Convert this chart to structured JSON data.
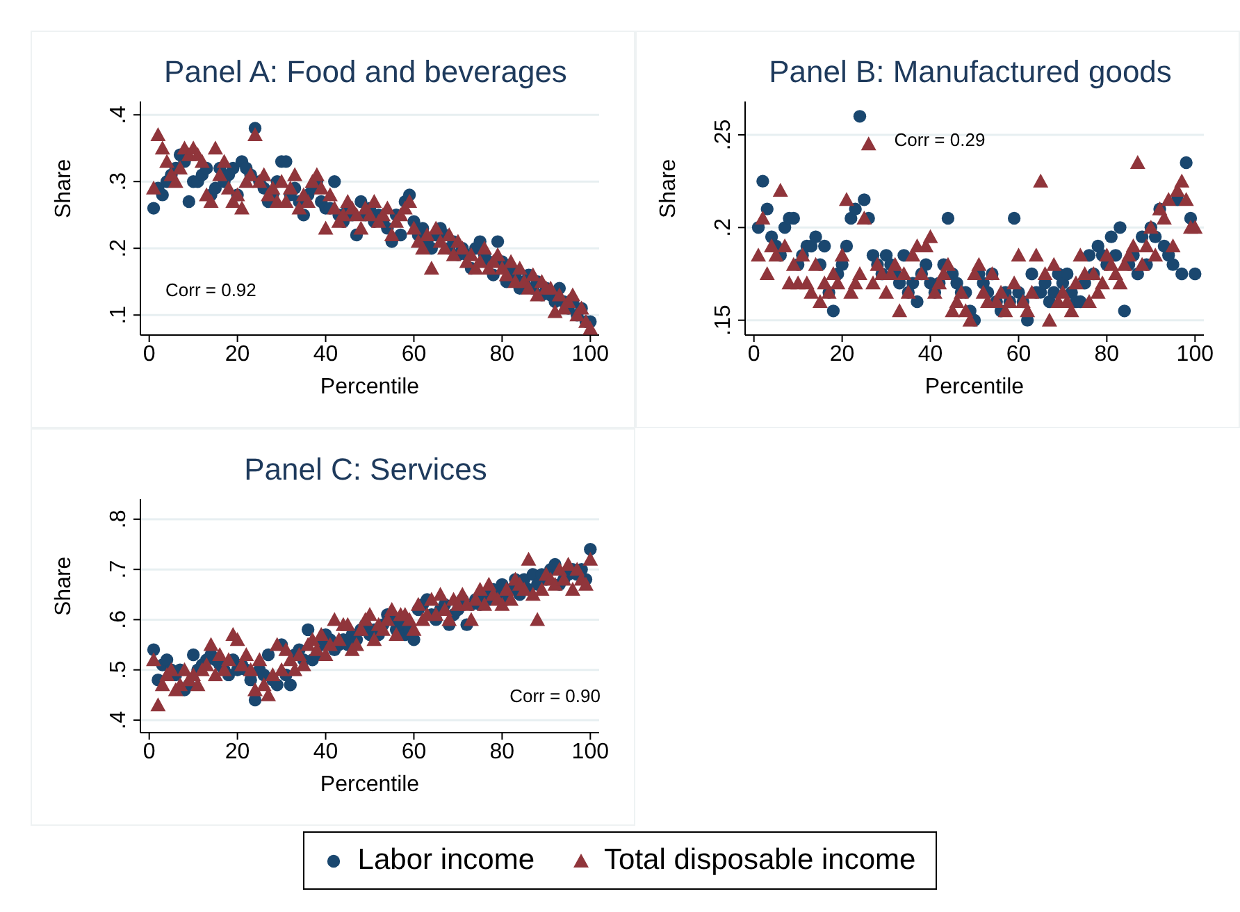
{
  "chart_data": [
    {
      "type": "scatter",
      "title": "Panel A: Food and beverages",
      "xlabel": "Percentile",
      "ylabel": "Share",
      "annotations": [
        "Corr = 0.92"
      ],
      "grid": "y",
      "legend": "bottom",
      "xlim": [
        -2,
        102
      ],
      "xticks": [
        0,
        20,
        40,
        60,
        80,
        100
      ],
      "ylim": [
        0.07,
        0.42
      ],
      "yticks": [
        {
          "value": 0.1,
          "label": ".1"
        },
        {
          "value": 0.2,
          "label": ".2"
        },
        {
          "value": 0.3,
          "label": ".3"
        },
        {
          "value": 0.4,
          "label": ".4"
        }
      ],
      "x": [
        1,
        2,
        3,
        4,
        5,
        6,
        7,
        8,
        9,
        10,
        11,
        12,
        13,
        14,
        15,
        16,
        17,
        18,
        19,
        20,
        21,
        22,
        23,
        24,
        25,
        26,
        27,
        28,
        29,
        30,
        31,
        32,
        33,
        34,
        35,
        36,
        37,
        38,
        39,
        40,
        41,
        42,
        43,
        44,
        45,
        46,
        47,
        48,
        49,
        50,
        51,
        52,
        53,
        54,
        55,
        56,
        57,
        58,
        59,
        60,
        61,
        62,
        63,
        64,
        65,
        66,
        67,
        68,
        69,
        70,
        71,
        72,
        73,
        74,
        75,
        76,
        77,
        78,
        79,
        80,
        81,
        82,
        83,
        84,
        85,
        86,
        87,
        88,
        89,
        90,
        91,
        92,
        93,
        94,
        95,
        96,
        97,
        98,
        99,
        100
      ],
      "series": [
        {
          "name": "Labor income",
          "color": "#1a476f",
          "marker": "circle",
          "values": [
            0.26,
            0.29,
            0.28,
            0.3,
            0.31,
            0.32,
            0.34,
            0.33,
            0.27,
            0.3,
            0.3,
            0.31,
            0.32,
            0.28,
            0.29,
            0.32,
            0.3,
            0.31,
            0.32,
            0.28,
            0.33,
            0.32,
            0.31,
            0.38,
            0.3,
            0.29,
            0.27,
            0.28,
            0.3,
            0.33,
            0.33,
            0.28,
            0.29,
            0.27,
            0.25,
            0.28,
            0.29,
            0.3,
            0.27,
            0.26,
            0.26,
            0.3,
            0.25,
            0.24,
            0.26,
            0.25,
            0.22,
            0.27,
            0.25,
            0.26,
            0.24,
            0.25,
            0.24,
            0.23,
            0.21,
            0.25,
            0.22,
            0.27,
            0.28,
            0.24,
            0.22,
            0.23,
            0.21,
            0.2,
            0.22,
            0.23,
            0.22,
            0.2,
            0.21,
            0.19,
            0.2,
            0.19,
            0.17,
            0.2,
            0.21,
            0.19,
            0.18,
            0.16,
            0.21,
            0.18,
            0.15,
            0.17,
            0.16,
            0.14,
            0.15,
            0.16,
            0.14,
            0.15,
            0.13,
            0.14,
            0.13,
            0.12,
            0.14,
            0.12,
            0.11,
            0.12,
            0.1,
            0.11,
            0.09,
            0.09
          ]
        },
        {
          "name": "Total disposable income",
          "color": "#90353b",
          "marker": "triangle",
          "values": [
            0.29,
            0.37,
            0.35,
            0.33,
            0.31,
            0.3,
            0.32,
            0.35,
            0.34,
            0.35,
            0.34,
            0.33,
            0.28,
            0.27,
            0.35,
            0.31,
            0.33,
            0.29,
            0.27,
            0.28,
            0.26,
            0.3,
            0.31,
            0.37,
            0.3,
            0.31,
            0.28,
            0.29,
            0.27,
            0.3,
            0.27,
            0.29,
            0.31,
            0.26,
            0.28,
            0.27,
            0.3,
            0.31,
            0.29,
            0.23,
            0.28,
            0.26,
            0.24,
            0.25,
            0.27,
            0.26,
            0.25,
            0.23,
            0.26,
            0.25,
            0.27,
            0.24,
            0.25,
            0.26,
            0.22,
            0.24,
            0.25,
            0.26,
            0.27,
            0.23,
            0.21,
            0.2,
            0.22,
            0.17,
            0.23,
            0.21,
            0.2,
            0.22,
            0.19,
            0.21,
            0.2,
            0.18,
            0.19,
            0.17,
            0.18,
            0.2,
            0.17,
            0.18,
            0.19,
            0.17,
            0.16,
            0.18,
            0.15,
            0.17,
            0.15,
            0.14,
            0.16,
            0.13,
            0.15,
            0.14,
            0.14,
            0.105,
            0.13,
            0.11,
            0.12,
            0.13,
            0.1,
            0.11,
            0.09,
            0.08
          ]
        }
      ]
    },
    {
      "type": "scatter",
      "title": "Panel B: Manufactured goods",
      "xlabel": "Percentile",
      "ylabel": "Share",
      "annotations": [
        "Corr = 0.29"
      ],
      "grid": "y",
      "xlim": [
        -2,
        102
      ],
      "xticks": [
        0,
        20,
        40,
        60,
        80,
        100
      ],
      "ylim": [
        0.142,
        0.268
      ],
      "yticks": [
        {
          "value": 0.15,
          "label": ".15"
        },
        {
          "value": 0.2,
          "label": ".2"
        },
        {
          "value": 0.25,
          "label": ".25"
        }
      ],
      "x": [
        1,
        2,
        3,
        4,
        5,
        6,
        7,
        8,
        9,
        10,
        11,
        12,
        13,
        14,
        15,
        16,
        17,
        18,
        19,
        20,
        21,
        22,
        23,
        24,
        25,
        26,
        27,
        28,
        29,
        30,
        31,
        32,
        33,
        34,
        35,
        36,
        37,
        38,
        39,
        40,
        41,
        42,
        43,
        44,
        45,
        46,
        47,
        48,
        49,
        50,
        51,
        52,
        53,
        54,
        55,
        56,
        57,
        58,
        59,
        60,
        61,
        62,
        63,
        64,
        65,
        66,
        67,
        68,
        69,
        70,
        71,
        72,
        73,
        74,
        75,
        76,
        77,
        78,
        79,
        80,
        81,
        82,
        83,
        84,
        85,
        86,
        87,
        88,
        89,
        90,
        91,
        92,
        93,
        94,
        95,
        96,
        97,
        98,
        99,
        100
      ],
      "series": [
        {
          "color": "#1a476f",
          "marker": "circle",
          "values": [
            0.2,
            0.225,
            0.21,
            0.195,
            0.19,
            0.185,
            0.2,
            0.205,
            0.205,
            0.18,
            0.185,
            0.19,
            0.19,
            0.195,
            0.18,
            0.19,
            0.165,
            0.155,
            0.175,
            0.18,
            0.19,
            0.205,
            0.21,
            0.26,
            0.215,
            0.205,
            0.185,
            0.18,
            0.175,
            0.185,
            0.18,
            0.175,
            0.17,
            0.185,
            0.165,
            0.17,
            0.16,
            0.175,
            0.18,
            0.17,
            0.165,
            0.17,
            0.18,
            0.205,
            0.175,
            0.17,
            0.165,
            0.165,
            0.155,
            0.15,
            0.175,
            0.17,
            0.165,
            0.175,
            0.16,
            0.155,
            0.165,
            0.16,
            0.205,
            0.165,
            0.16,
            0.15,
            0.175,
            0.165,
            0.165,
            0.17,
            0.16,
            0.165,
            0.175,
            0.17,
            0.175,
            0.165,
            0.16,
            0.16,
            0.17,
            0.185,
            0.175,
            0.19,
            0.185,
            0.18,
            0.195,
            0.185,
            0.2,
            0.155,
            0.18,
            0.185,
            0.175,
            0.195,
            0.18,
            0.2,
            0.195,
            0.21,
            0.19,
            0.185,
            0.18,
            0.215,
            0.175,
            0.235,
            0.205,
            0.175
          ]
        },
        {
          "color": "#90353b",
          "marker": "triangle",
          "values": [
            0.185,
            0.205,
            0.175,
            0.19,
            0.185,
            0.22,
            0.19,
            0.17,
            0.18,
            0.17,
            0.185,
            0.17,
            0.165,
            0.18,
            0.16,
            0.17,
            0.165,
            0.175,
            0.17,
            0.185,
            0.215,
            0.165,
            0.17,
            0.175,
            0.205,
            0.245,
            0.17,
            0.18,
            0.175,
            0.165,
            0.175,
            0.18,
            0.155,
            0.175,
            0.165,
            0.185,
            0.19,
            0.175,
            0.19,
            0.195,
            0.165,
            0.17,
            0.175,
            0.18,
            0.155,
            0.16,
            0.165,
            0.155,
            0.15,
            0.175,
            0.18,
            0.165,
            0.16,
            0.175,
            0.16,
            0.165,
            0.155,
            0.16,
            0.17,
            0.185,
            0.16,
            0.155,
            0.165,
            0.185,
            0.225,
            0.175,
            0.15,
            0.18,
            0.16,
            0.165,
            0.16,
            0.155,
            0.17,
            0.185,
            0.175,
            0.16,
            0.175,
            0.165,
            0.17,
            0.185,
            0.18,
            0.175,
            0.17,
            0.18,
            0.185,
            0.19,
            0.235,
            0.18,
            0.19,
            0.2,
            0.185,
            0.21,
            0.205,
            0.215,
            0.19,
            0.22,
            0.225,
            0.215,
            0.2,
            0.2
          ]
        }
      ]
    },
    {
      "type": "scatter",
      "title": "Panel C: Services",
      "xlabel": "Percentile",
      "ylabel": "Share",
      "annotations": [
        "Corr = 0.90"
      ],
      "grid": "y",
      "xlim": [
        -2,
        102
      ],
      "xticks": [
        0,
        20,
        40,
        60,
        80,
        100
      ],
      "ylim": [
        0.375,
        0.84
      ],
      "yticks": [
        {
          "value": 0.4,
          "label": ".4"
        },
        {
          "value": 0.5,
          "label": ".5"
        },
        {
          "value": 0.6,
          "label": ".6"
        },
        {
          "value": 0.7,
          "label": ".7"
        },
        {
          "value": 0.8,
          "label": ".8"
        }
      ],
      "x": [
        1,
        2,
        3,
        4,
        5,
        6,
        7,
        8,
        9,
        10,
        11,
        12,
        13,
        14,
        15,
        16,
        17,
        18,
        19,
        20,
        21,
        22,
        23,
        24,
        25,
        26,
        27,
        28,
        29,
        30,
        31,
        32,
        33,
        34,
        35,
        36,
        37,
        38,
        39,
        40,
        41,
        42,
        43,
        44,
        45,
        46,
        47,
        48,
        49,
        50,
        51,
        52,
        53,
        54,
        55,
        56,
        57,
        58,
        59,
        60,
        61,
        62,
        63,
        64,
        65,
        66,
        67,
        68,
        69,
        70,
        71,
        72,
        73,
        74,
        75,
        76,
        77,
        78,
        79,
        80,
        81,
        82,
        83,
        84,
        85,
        86,
        87,
        88,
        89,
        90,
        91,
        92,
        93,
        94,
        95,
        96,
        97,
        98,
        99,
        100
      ],
      "series": [
        {
          "color": "#1a476f",
          "marker": "circle",
          "values": [
            0.54,
            0.48,
            0.51,
            0.52,
            0.5,
            0.49,
            0.5,
            0.46,
            0.47,
            0.53,
            0.5,
            0.51,
            0.52,
            0.53,
            0.52,
            0.51,
            0.5,
            0.49,
            0.52,
            0.5,
            0.51,
            0.5,
            0.48,
            0.44,
            0.5,
            0.49,
            0.53,
            0.48,
            0.47,
            0.55,
            0.49,
            0.47,
            0.53,
            0.54,
            0.52,
            0.58,
            0.52,
            0.53,
            0.55,
            0.57,
            0.56,
            0.54,
            0.55,
            0.56,
            0.55,
            0.57,
            0.56,
            0.58,
            0.59,
            0.57,
            0.58,
            0.57,
            0.59,
            0.61,
            0.6,
            0.58,
            0.59,
            0.57,
            0.58,
            0.56,
            0.62,
            0.63,
            0.64,
            0.61,
            0.6,
            0.62,
            0.63,
            0.59,
            0.61,
            0.62,
            0.64,
            0.59,
            0.63,
            0.64,
            0.63,
            0.65,
            0.64,
            0.66,
            0.65,
            0.67,
            0.64,
            0.66,
            0.68,
            0.65,
            0.68,
            0.66,
            0.69,
            0.67,
            0.69,
            0.68,
            0.7,
            0.71,
            0.67,
            0.68,
            0.69,
            0.7,
            0.69,
            0.7,
            0.68,
            0.74
          ]
        },
        {
          "color": "#90353b",
          "marker": "triangle",
          "values": [
            0.52,
            0.43,
            0.47,
            0.49,
            0.5,
            0.46,
            0.47,
            0.5,
            0.48,
            0.49,
            0.47,
            0.5,
            0.51,
            0.55,
            0.49,
            0.53,
            0.5,
            0.52,
            0.57,
            0.56,
            0.51,
            0.53,
            0.5,
            0.46,
            0.52,
            0.47,
            0.45,
            0.49,
            0.55,
            0.5,
            0.54,
            0.52,
            0.5,
            0.53,
            0.51,
            0.55,
            0.56,
            0.54,
            0.57,
            0.53,
            0.55,
            0.6,
            0.56,
            0.59,
            0.59,
            0.54,
            0.55,
            0.58,
            0.6,
            0.61,
            0.56,
            0.59,
            0.58,
            0.6,
            0.62,
            0.57,
            0.61,
            0.61,
            0.6,
            0.58,
            0.63,
            0.6,
            0.61,
            0.64,
            0.61,
            0.65,
            0.62,
            0.6,
            0.64,
            0.63,
            0.65,
            0.63,
            0.6,
            0.64,
            0.66,
            0.63,
            0.67,
            0.65,
            0.64,
            0.63,
            0.66,
            0.64,
            0.68,
            0.67,
            0.66,
            0.72,
            0.65,
            0.6,
            0.66,
            0.69,
            0.68,
            0.67,
            0.7,
            0.68,
            0.71,
            0.66,
            0.7,
            0.68,
            0.67,
            0.72
          ]
        }
      ]
    }
  ]
}
